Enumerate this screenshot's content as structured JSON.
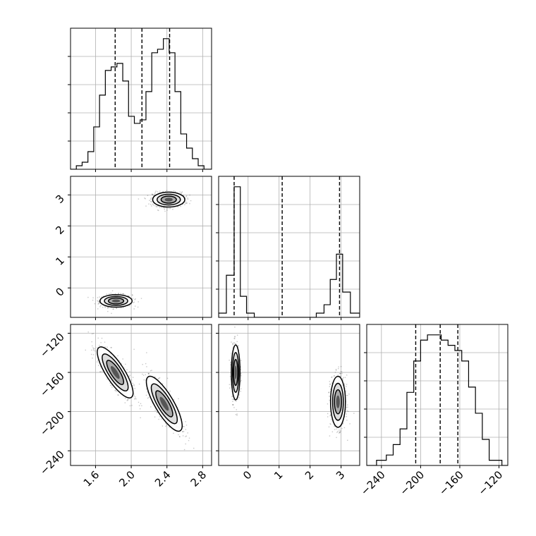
{
  "chart_data": {
    "type": "corner",
    "grid": true,
    "parameters": [
      {
        "label": "",
        "range": [
          1.32,
          2.9
        ],
        "ticks": [
          1.6,
          2.0,
          2.4,
          2.8
        ],
        "tick_labels": [
          "1.6",
          "2.0",
          "2.4",
          "2.8"
        ],
        "quantiles": [
          1.82,
          2.12,
          2.43
        ]
      },
      {
        "label": "",
        "range": [
          -0.95,
          3.6
        ],
        "ticks": [
          0,
          1,
          2,
          3
        ],
        "tick_labels": [
          "0",
          "1",
          "2",
          "3"
        ],
        "quantiles": [
          -0.45,
          1.1,
          2.95
        ]
      },
      {
        "label": "",
        "range": [
          -255,
          -111
        ],
        "ticks": [
          -240,
          -200,
          -160,
          -120
        ],
        "tick_labels": [
          "−240",
          "−200",
          "−160",
          "−120"
        ],
        "quantiles": [
          -205,
          -180,
          -162
        ]
      }
    ],
    "histograms": [
      {
        "param": 0,
        "bin_edges": [
          1.32,
          1.385,
          1.45,
          1.515,
          1.58,
          1.645,
          1.71,
          1.775,
          1.84,
          1.905,
          1.97,
          2.035,
          2.1,
          2.165,
          2.23,
          2.295,
          2.36,
          2.425,
          2.49,
          2.555,
          2.62,
          2.685,
          2.75,
          2.815,
          2.9
        ],
        "counts": [
          0,
          1,
          2,
          5,
          12,
          21,
          28,
          29,
          30,
          25,
          15,
          13,
          14,
          22,
          33,
          34,
          37,
          33,
          22,
          10,
          6,
          3,
          1,
          0
        ]
      },
      {
        "param": 1,
        "bin_edges": [
          -0.95,
          -0.7,
          -0.45,
          -0.25,
          -0.05,
          0.2,
          0.5,
          1.0,
          1.5,
          2.0,
          2.2,
          2.45,
          2.65,
          2.85,
          3.05,
          3.3,
          3.6
        ],
        "counts": [
          1,
          10,
          31,
          5,
          1,
          0,
          0,
          0,
          0,
          0,
          1,
          3,
          9,
          15,
          6,
          1
        ]
      },
      {
        "param": 2,
        "bin_edges": [
          -255,
          -245,
          -235,
          -228,
          -221,
          -214,
          -207,
          -200,
          -193,
          -186,
          -179,
          -172,
          -165,
          -158,
          -151,
          -144,
          -137,
          -130,
          -123,
          -117,
          -111
        ],
        "counts": [
          0,
          1,
          2,
          4,
          7,
          14,
          20,
          24,
          25,
          25,
          24,
          23,
          22,
          20,
          15,
          10,
          5,
          1,
          1,
          0
        ]
      }
    ],
    "scatter": [
      {
        "x_param": 0,
        "y_param": 1,
        "clusters": [
          {
            "mean": [
              1.83,
              -0.42
            ],
            "sd": [
              0.09,
              0.1
            ],
            "corr": 0.0,
            "n": 600
          },
          {
            "mean": [
              2.42,
              2.85
            ],
            "sd": [
              0.09,
              0.12
            ],
            "corr": 0.0,
            "n": 600
          }
        ]
      },
      {
        "x_param": 0,
        "y_param": 2,
        "clusters": [
          {
            "mean": [
              1.82,
              -160
            ],
            "sd": [
              0.1,
              13
            ],
            "corr": -0.8,
            "n": 600
          },
          {
            "mean": [
              2.37,
              -192
            ],
            "sd": [
              0.1,
              14
            ],
            "corr": -0.8,
            "n": 600
          }
        ]
      },
      {
        "x_param": 1,
        "y_param": 2,
        "clusters": [
          {
            "mean": [
              -0.4,
              -160
            ],
            "sd": [
              0.07,
              14
            ],
            "corr": 0.0,
            "n": 600
          },
          {
            "mean": [
              2.9,
              -190
            ],
            "sd": [
              0.12,
              13
            ],
            "corr": 0.0,
            "n": 600
          }
        ]
      }
    ]
  }
}
